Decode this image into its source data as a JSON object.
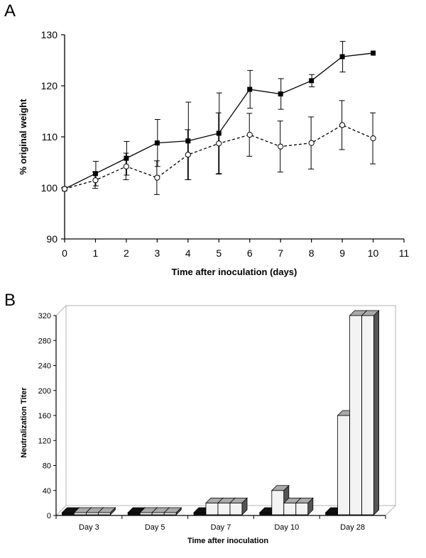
{
  "panels": {
    "a_label": "A",
    "b_label": "B"
  },
  "chart_data": [
    {
      "type": "line",
      "xlabel": "Time after inoculation (days)",
      "ylabel": "% original weight",
      "xlim": [
        0,
        11
      ],
      "ylim": [
        90,
        130
      ],
      "xticks": [
        "0",
        "1",
        "2",
        "3",
        "4",
        "5",
        "6",
        "7",
        "8",
        "9",
        "10",
        "11"
      ],
      "yticks": [
        "90",
        "100",
        "110",
        "120",
        "130"
      ],
      "grid": false,
      "series": [
        {
          "marker": "filled-square",
          "line": "solid",
          "x": [
            0,
            1,
            2,
            3,
            4,
            5,
            6,
            7,
            8,
            9,
            10
          ],
          "y": [
            99.8,
            102.8,
            105.8,
            108.8,
            109.2,
            110.7,
            119.3,
            118.4,
            121.0,
            125.7,
            126.4
          ],
          "err": [
            0,
            2.4,
            3.3,
            4.6,
            7.6,
            7.9,
            3.7,
            3.0,
            1.2,
            3.0,
            0
          ]
        },
        {
          "marker": "open-circle",
          "line": "dashed",
          "x": [
            0,
            1,
            2,
            3,
            4,
            5,
            6,
            7,
            8,
            9,
            10
          ],
          "y": [
            99.8,
            101.5,
            104.2,
            102.0,
            106.5,
            108.7,
            110.4,
            108.1,
            108.8,
            112.3,
            109.7
          ],
          "err": [
            0,
            1.6,
            2.6,
            3.3,
            4.9,
            6.0,
            4.2,
            5.0,
            5.1,
            4.8,
            5.0
          ]
        }
      ]
    },
    {
      "type": "bar",
      "xlabel": "Time after inoculation",
      "ylabel": "Neutralization Titer",
      "ylim": [
        0,
        320
      ],
      "yticks": [
        "0",
        "40",
        "80",
        "120",
        "160",
        "200",
        "240",
        "280",
        "320"
      ],
      "categories": [
        "Day 3",
        "Day 5",
        "Day 7",
        "Day 10",
        "Day 28"
      ],
      "groups": [
        {
          "category": "Day 3",
          "values": [
            0,
            0,
            0,
            0
          ]
        },
        {
          "category": "Day 5",
          "values": [
            0,
            0,
            0,
            0
          ]
        },
        {
          "category": "Day 7",
          "values": [
            0,
            20,
            20,
            20
          ]
        },
        {
          "category": "Day 10",
          "values": [
            0,
            40,
            20,
            20
          ]
        },
        {
          "category": "Day 28",
          "values": [
            0,
            160,
            320,
            320
          ]
        }
      ]
    }
  ]
}
